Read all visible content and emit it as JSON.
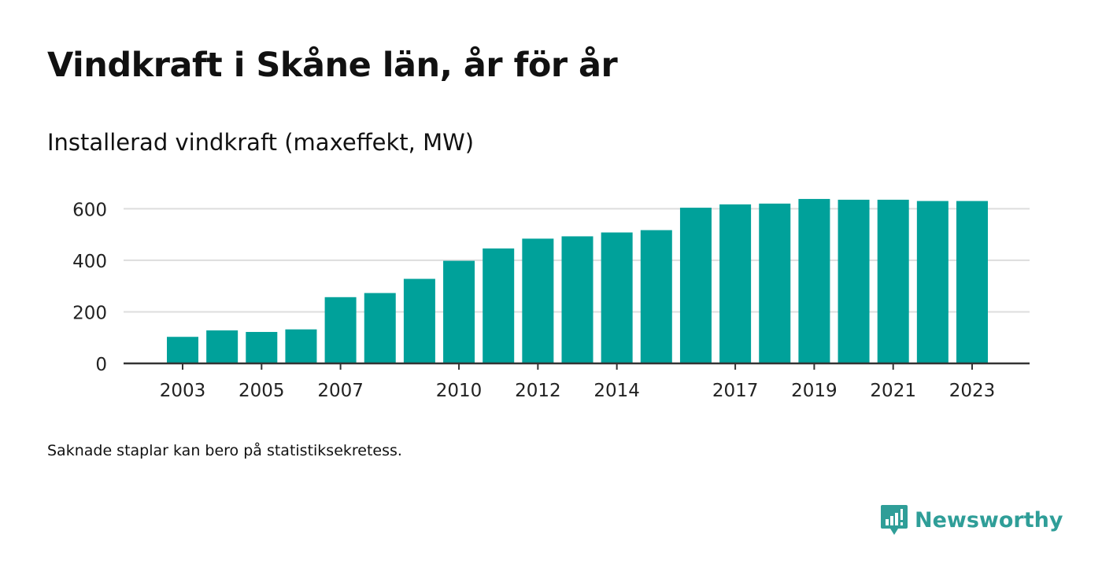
{
  "header": {
    "title": "Vindkraft i Skåne län, år för år",
    "subtitle": "Installerad vindkraft (maxeffekt, MW)"
  },
  "footer": {
    "note": "Saknade staplar kan bero på statistiksekretess.",
    "brand": "Newsworthy",
    "brand_icon": "newsworthy-logo-icon"
  },
  "colors": {
    "bar": "#00a19a",
    "grid": "#dddddd",
    "axis": "#333333",
    "brand": "#2f9e98"
  },
  "chart_data": {
    "type": "bar",
    "categories": [
      "2003",
      "2004",
      "2005",
      "2006",
      "2007",
      "2008",
      "2009",
      "2010",
      "2011",
      "2012",
      "2013",
      "2014",
      "2015",
      "2016",
      "2017",
      "2018",
      "2019",
      "2020",
      "2021",
      "2022",
      "2023"
    ],
    "x_tick_labels": [
      "2003",
      "2005",
      "2007",
      "2010",
      "2012",
      "2014",
      "2017",
      "2019",
      "2021",
      "2023"
    ],
    "values": [
      103,
      128,
      122,
      132,
      257,
      273,
      328,
      398,
      446,
      484,
      493,
      508,
      517,
      604,
      617,
      620,
      638,
      635,
      635,
      630,
      630
    ],
    "y_ticks": [
      0,
      200,
      400,
      600
    ],
    "ylim": [
      0,
      650
    ],
    "grid": true,
    "xlabel": "",
    "ylabel": ""
  }
}
